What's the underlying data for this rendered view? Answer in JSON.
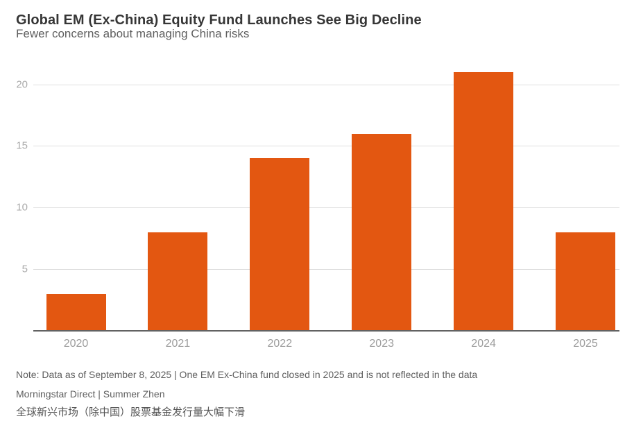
{
  "header": {
    "title": "Global EM (Ex-China) Equity Fund Launches See Big Decline",
    "subtitle": "Fewer concerns about managing China risks"
  },
  "chart_data": {
    "type": "bar",
    "title": "Global EM (Ex-China) Equity Fund Launches See Big Decline",
    "subtitle": "Fewer concerns about managing China risks",
    "categories": [
      "2020",
      "2021",
      "2022",
      "2023",
      "2024",
      "2025"
    ],
    "values": [
      3,
      8,
      14,
      16,
      21,
      8
    ],
    "xlabel": "",
    "ylabel": "",
    "ylim": [
      0,
      21.5
    ],
    "yticks": [
      5,
      10,
      15,
      20
    ],
    "grid": true,
    "legend": "none",
    "bar_color": "#e35711"
  },
  "footer": {
    "note": "Note: Data as of September 8, 2025 | One EM Ex-China fund closed in 2025 and is not reflected in the data",
    "source": "Morningstar Direct | Summer Zhen",
    "chinese_title": "全球新兴市场（除中国）股票基金发行量大幅下滑"
  },
  "colors": {
    "bar": "#e35711",
    "gridline": "#dedede",
    "axis_line": "#626262",
    "y_tick_label": "#ababab",
    "x_tick_label": "#9c9c9c",
    "title": "#363636",
    "subtitle": "#5e5e5e",
    "note": "#5e5e5e"
  }
}
